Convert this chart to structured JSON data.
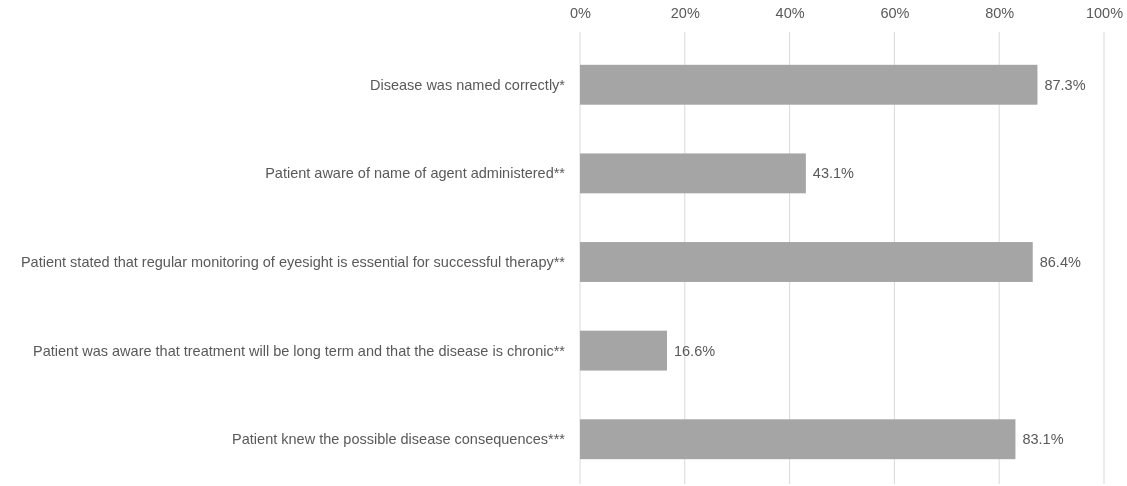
{
  "chart_data": {
    "type": "bar",
    "orientation": "horizontal",
    "categories": [
      "Disease was named correctly*",
      "Patient aware of name of agent administered**",
      "Patient stated that regular monitoring of eyesight is essential for successful therapy**",
      "Patient was aware that treatment will be long term and that the disease is chronic**",
      "Patient knew the possible disease consequences***"
    ],
    "values": [
      87.3,
      43.1,
      86.4,
      16.6,
      83.1
    ],
    "value_labels": [
      "87.3%",
      "43.1%",
      "86.4%",
      "16.6%",
      "83.1%"
    ],
    "color": "#a5a5a5",
    "xlim": [
      0,
      100
    ],
    "xticks": [
      {
        "value": 0,
        "label": "0%"
      },
      {
        "value": 20,
        "label": "20%"
      },
      {
        "value": 40,
        "label": "40%"
      },
      {
        "value": 60,
        "label": "60%"
      },
      {
        "value": 80,
        "label": "80%"
      },
      {
        "value": 100,
        "label": "100%"
      }
    ],
    "grid": "x"
  }
}
